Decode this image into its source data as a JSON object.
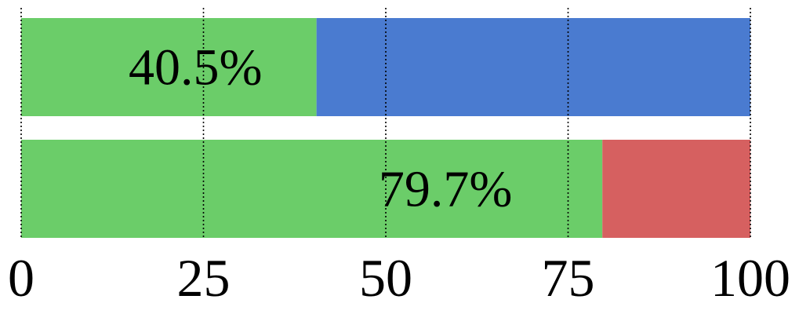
{
  "chart_data": {
    "type": "bar",
    "orientation": "horizontal",
    "stacked": true,
    "xlim": [
      0,
      100
    ],
    "x_ticks": [
      0,
      25,
      50,
      75,
      100
    ],
    "x_tick_labels": [
      "0",
      "25",
      "50",
      "75",
      "100"
    ],
    "grid": "vertical dotted",
    "rows": [
      {
        "segments": [
          {
            "value": 40.5,
            "color": "#6bcd69"
          },
          {
            "value": 59.5,
            "color": "#4a7bd0"
          }
        ],
        "label": "40.5%"
      },
      {
        "segments": [
          {
            "value": 79.7,
            "color": "#6bcd69"
          },
          {
            "value": 20.3,
            "color": "#d66060"
          }
        ],
        "label": "79.7%"
      }
    ]
  }
}
